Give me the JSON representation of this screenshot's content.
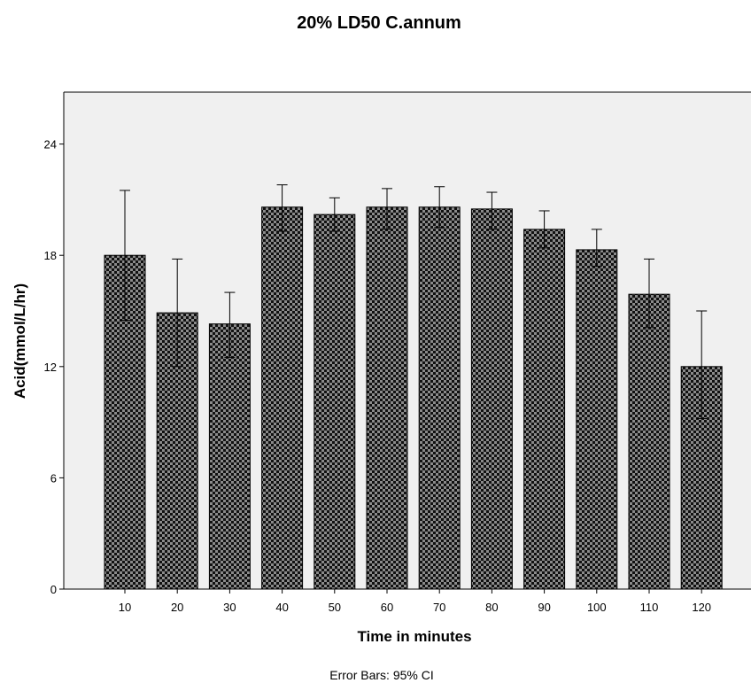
{
  "chart_data": {
    "type": "bar",
    "title": "20% LD50 C.annum",
    "xlabel": "Time in minutes",
    "ylabel": "Acid(mmol/L/hr)",
    "footnote": "Error Bars: 95% CI",
    "categories": [
      "10",
      "20",
      "30",
      "40",
      "50",
      "60",
      "70",
      "80",
      "90",
      "100",
      "110",
      "120"
    ],
    "values": [
      18.0,
      14.9,
      14.3,
      20.6,
      20.2,
      20.6,
      20.6,
      20.5,
      19.4,
      18.3,
      15.9,
      12.0
    ],
    "error_low": [
      14.5,
      12.0,
      12.5,
      19.3,
      19.3,
      19.4,
      19.5,
      19.4,
      18.4,
      17.4,
      14.1,
      9.2
    ],
    "error_high": [
      21.5,
      17.8,
      16.0,
      21.8,
      21.1,
      21.6,
      21.7,
      21.4,
      20.4,
      19.4,
      17.8,
      15.0
    ],
    "ylim": [
      0,
      26.8
    ],
    "yticks": [
      "0",
      "6",
      "12",
      "18",
      "24"
    ],
    "grid": false,
    "colors": {
      "plot_background": "#f0f0f0",
      "bar_fill": "#111111",
      "bar_pattern": "#8a8a8a"
    }
  }
}
